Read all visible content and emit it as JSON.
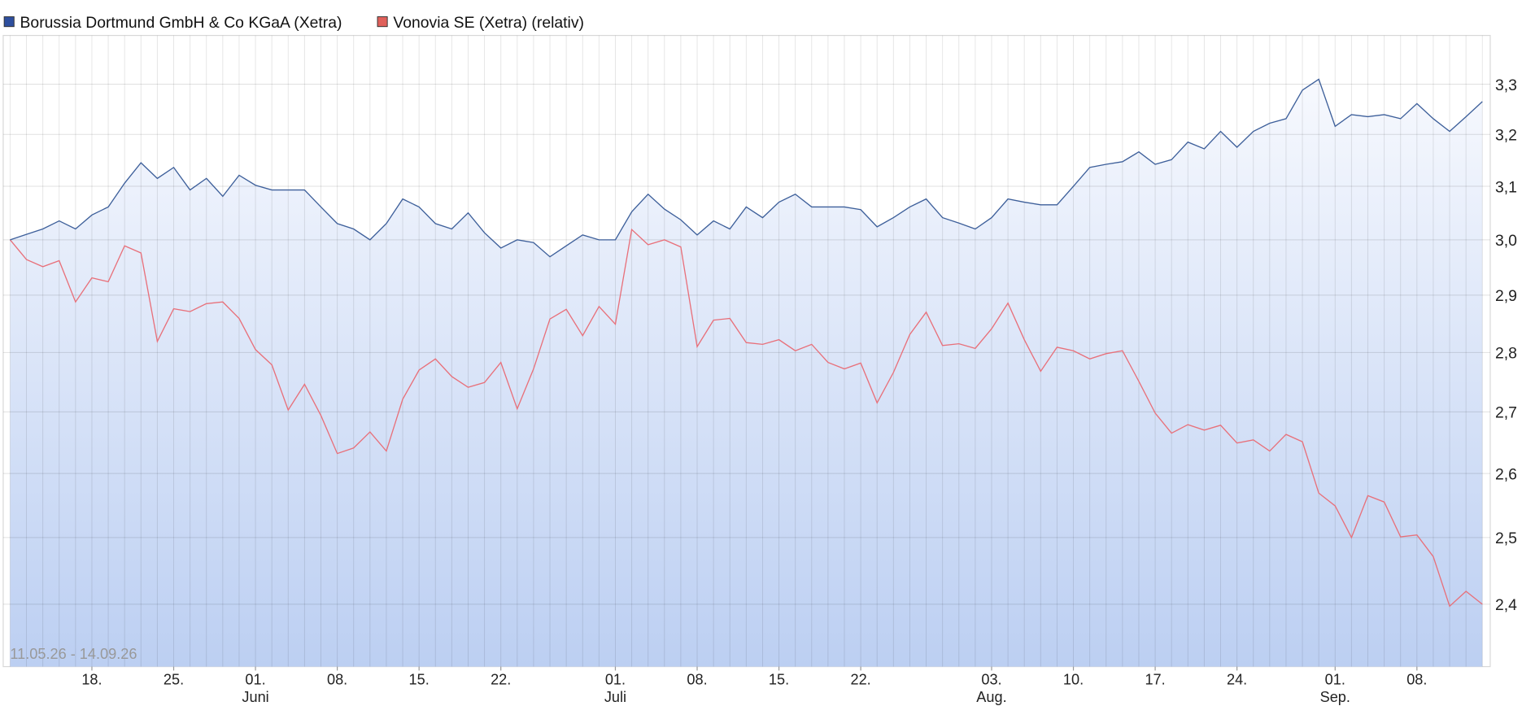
{
  "chart_data": {
    "type": "line",
    "log_scale": true,
    "grid": true,
    "legend_position": "top-left",
    "date_range": "11.05.26 - 14.09.26",
    "area_colors": [
      "#f7f9fe",
      "#bccff2"
    ],
    "xlim": [
      0,
      90
    ],
    "xticks": [
      {
        "value": 5,
        "label": "18."
      },
      {
        "value": 10,
        "label": "25."
      },
      {
        "value": 15,
        "label": "01."
      },
      {
        "value": 20,
        "label": "08."
      },
      {
        "value": 25,
        "label": "15."
      },
      {
        "value": 30,
        "label": "22."
      },
      {
        "value": 37,
        "label": "01."
      },
      {
        "value": 42,
        "label": "08."
      },
      {
        "value": 47,
        "label": "15."
      },
      {
        "value": 52,
        "label": "22."
      },
      {
        "value": 60,
        "label": "03."
      },
      {
        "value": 65,
        "label": "10."
      },
      {
        "value": 70,
        "label": "17."
      },
      {
        "value": 75,
        "label": "24."
      },
      {
        "value": 81,
        "label": "01."
      },
      {
        "value": 86,
        "label": "08."
      }
    ],
    "month_labels": [
      {
        "value": 15,
        "label": "Juni"
      },
      {
        "value": 37,
        "label": "Juli"
      },
      {
        "value": 60,
        "label": "Aug."
      },
      {
        "value": 81,
        "label": "Sep."
      }
    ],
    "ylim": [
      2.31,
      3.4
    ],
    "yticks": [
      {
        "value": 2.4,
        "label": "2,4"
      },
      {
        "value": 2.5,
        "label": "2,5"
      },
      {
        "value": 2.6,
        "label": "2,6"
      },
      {
        "value": 2.7,
        "label": "2,7"
      },
      {
        "value": 2.8,
        "label": "2,8"
      },
      {
        "value": 2.9,
        "label": "2,9"
      },
      {
        "value": 3.0,
        "label": "3,0"
      },
      {
        "value": 3.1,
        "label": "3,1"
      },
      {
        "value": 3.2,
        "label": "3,2"
      },
      {
        "value": 3.3,
        "label": "3,3"
      }
    ],
    "series": [
      {
        "name": "Borussia Dortmund GmbH & Co KGaA (Xetra)",
        "color": "#3d5f9a",
        "legend_color": "#2e4f9e",
        "values": [
          3.0,
          3.01,
          3.02,
          3.035,
          3.02,
          3.046,
          3.061,
          3.106,
          3.145,
          3.115,
          3.136,
          3.093,
          3.115,
          3.081,
          3.121,
          3.102,
          3.093,
          3.093,
          3.093,
          3.061,
          3.03,
          3.02,
          3.0,
          3.03,
          3.076,
          3.061,
          3.03,
          3.02,
          3.05,
          3.013,
          2.985,
          3.0,
          2.995,
          2.969,
          2.989,
          3.009,
          3.0,
          3.0,
          3.052,
          3.085,
          3.057,
          3.037,
          3.009,
          3.035,
          3.02,
          3.061,
          3.041,
          3.07,
          3.085,
          3.061,
          3.061,
          3.061,
          3.056,
          3.024,
          3.041,
          3.061,
          3.076,
          3.041,
          3.031,
          3.02,
          3.041,
          3.076,
          3.07,
          3.065,
          3.065,
          3.1,
          3.136,
          3.142,
          3.147,
          3.166,
          3.142,
          3.151,
          3.185,
          3.172,
          3.206,
          3.175,
          3.206,
          3.222,
          3.231,
          3.288,
          3.31,
          3.216,
          3.239,
          3.235,
          3.239,
          3.231,
          3.261,
          3.231,
          3.206,
          3.235,
          3.265
        ]
      },
      {
        "name": "Vonovia SE (Xetra) (relativ)",
        "color": "#e8707a",
        "legend_color": "#e0605a",
        "values": [
          3.0,
          2.964,
          2.951,
          2.962,
          2.888,
          2.931,
          2.924,
          2.989,
          2.976,
          2.819,
          2.876,
          2.871,
          2.885,
          2.888,
          2.859,
          2.805,
          2.779,
          2.703,
          2.746,
          2.694,
          2.632,
          2.641,
          2.667,
          2.636,
          2.721,
          2.77,
          2.789,
          2.759,
          2.741,
          2.749,
          2.783,
          2.705,
          2.772,
          2.858,
          2.875,
          2.829,
          2.88,
          2.849,
          3.019,
          2.991,
          3.0,
          2.987,
          2.81,
          2.856,
          2.859,
          2.817,
          2.814,
          2.822,
          2.803,
          2.814,
          2.783,
          2.772,
          2.782,
          2.715,
          2.766,
          2.831,
          2.87,
          2.812,
          2.815,
          2.807,
          2.841,
          2.886,
          2.822,
          2.768,
          2.809,
          2.803,
          2.789,
          2.798,
          2.803,
          2.751,
          2.698,
          2.665,
          2.679,
          2.67,
          2.678,
          2.649,
          2.654,
          2.636,
          2.663,
          2.651,
          2.569,
          2.549,
          2.5,
          2.565,
          2.555,
          2.501,
          2.504,
          2.471,
          2.397,
          2.419,
          2.4
        ]
      }
    ]
  }
}
